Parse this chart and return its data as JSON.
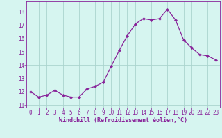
{
  "x": [
    0,
    1,
    2,
    3,
    4,
    5,
    6,
    7,
    8,
    9,
    10,
    11,
    12,
    13,
    14,
    15,
    16,
    17,
    18,
    19,
    20,
    21,
    22,
    23
  ],
  "y": [
    12.0,
    11.6,
    11.75,
    12.1,
    11.75,
    11.6,
    11.6,
    12.2,
    12.4,
    12.7,
    13.9,
    15.1,
    16.2,
    17.1,
    17.5,
    17.4,
    17.5,
    18.2,
    17.4,
    15.9,
    15.3,
    14.8,
    14.7,
    14.4
  ],
  "line_color": "#882299",
  "marker": "D",
  "marker_size": 2.2,
  "bg_color": "#d6f5f0",
  "grid_color": "#aad4ce",
  "tick_color": "#882299",
  "label_color": "#882299",
  "xlabel": "Windchill (Refroidissement éolien,°C)",
  "xlabel_fontsize": 6.0,
  "tick_fontsize": 5.5,
  "ytick_labels": [
    11,
    12,
    13,
    14,
    15,
    16,
    17,
    18
  ],
  "xtick_labels": [
    0,
    1,
    2,
    3,
    4,
    5,
    6,
    7,
    8,
    9,
    10,
    11,
    12,
    13,
    14,
    15,
    16,
    17,
    18,
    19,
    20,
    21,
    22,
    23
  ],
  "ylim": [
    10.8,
    18.8
  ],
  "xlim": [
    -0.5,
    23.5
  ]
}
